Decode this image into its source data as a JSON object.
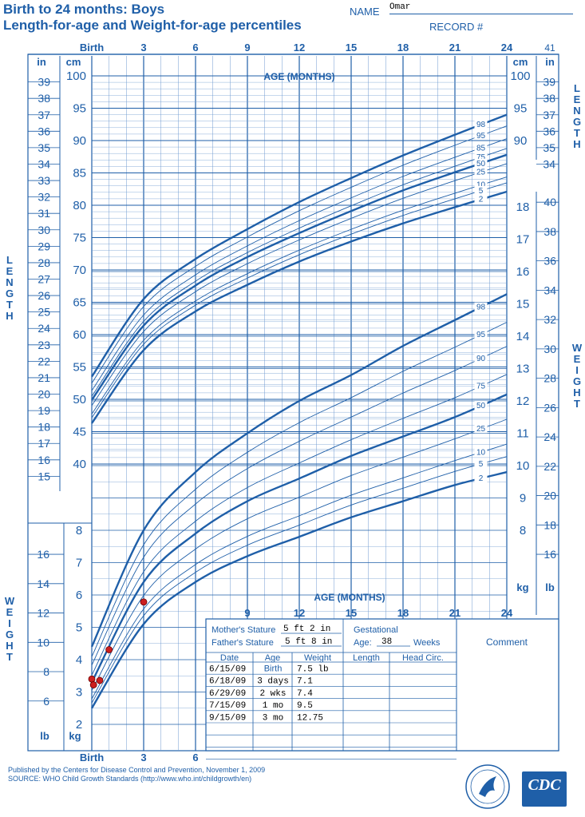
{
  "header": {
    "title_line1": "Birth to 24 months: Boys",
    "title_line2": "Length-for-age and Weight-for-age percentiles",
    "name_label": "NAME",
    "name_value": "Omar",
    "record_label": "RECORD #"
  },
  "footer": {
    "published": "Published by the Centers for Disease Control and Prevention, November 1, 2009",
    "source": "SOURCE:  WHO Child Growth Standards (http://www.who.int/childgrowth/en)",
    "cdc_logo_text": "CDC"
  },
  "chart_data": {
    "type": "line",
    "age_axis": {
      "label": "AGE (MONTHS)",
      "ticks": [
        "Birth",
        "3",
        "6",
        "9",
        "12",
        "15",
        "18",
        "21",
        "24"
      ],
      "range_months": [
        0,
        24
      ]
    },
    "length_axis": {
      "label": "LENGTH",
      "cm_label": "cm",
      "in_label": "in",
      "cm_ticks": [
        100,
        95,
        90,
        85,
        80,
        75,
        70,
        65,
        60,
        55,
        50,
        45,
        40
      ],
      "in_ticks_left": [
        39,
        38,
        37,
        36,
        35,
        34,
        33,
        32,
        31,
        30,
        29,
        28,
        27,
        26,
        25,
        24,
        23,
        22,
        21,
        20,
        19,
        18,
        17,
        16,
        15
      ],
      "in_ticks_right": [
        41,
        39,
        38,
        37,
        36,
        35,
        34
      ],
      "cm_ticks_right": [
        100,
        95,
        90
      ]
    },
    "weight_axis": {
      "label": "WEIGHT",
      "kg_label": "kg",
      "lb_label": "lb",
      "kg_ticks_left": [
        8,
        7,
        6,
        5,
        4,
        3,
        2
      ],
      "lb_ticks_left": [
        16,
        14,
        12,
        10,
        8,
        6
      ],
      "kg_ticks_right": [
        18,
        17,
        16,
        15,
        14,
        13,
        12,
        11,
        10,
        9,
        8
      ],
      "lb_ticks_right": [
        40,
        38,
        36,
        34,
        32,
        30,
        28,
        26,
        24,
        22,
        20,
        18,
        16
      ]
    },
    "length_percentiles": [
      "98",
      "95",
      "85",
      "75",
      "50",
      "25",
      "10",
      "5",
      "2"
    ],
    "weight_percentiles": [
      "98",
      "95",
      "90",
      "75",
      "50",
      "25",
      "10",
      "5",
      "2"
    ],
    "length_curves_cm": {
      "ages": [
        0,
        3,
        6,
        9,
        12,
        15,
        18,
        21,
        24
      ],
      "p98": [
        53.5,
        65.5,
        71.7,
        76.3,
        80.5,
        84.2,
        87.7,
        90.9,
        94.0
      ],
      "p50": [
        49.9,
        61.4,
        67.6,
        72.0,
        75.7,
        79.1,
        82.3,
        85.1,
        87.8
      ],
      "p2": [
        46.3,
        57.6,
        63.6,
        67.7,
        71.3,
        74.4,
        77.2,
        79.7,
        82.1
      ]
    },
    "weight_curves_kg": {
      "ages": [
        0,
        3,
        6,
        9,
        12,
        15,
        18,
        21,
        24
      ],
      "p98": [
        4.4,
        8.0,
        9.8,
        11.0,
        12.0,
        12.8,
        13.7,
        14.5,
        15.3
      ],
      "p50": [
        3.3,
        6.4,
        7.9,
        8.9,
        9.6,
        10.3,
        10.9,
        11.5,
        12.2
      ],
      "p2": [
        2.5,
        5.1,
        6.4,
        7.2,
        7.8,
        8.4,
        8.9,
        9.4,
        9.8
      ]
    },
    "measurements": [
      {
        "date": "6/15/09",
        "age": "Birth",
        "weight": "7.5 lb",
        "age_months": 0.0,
        "weight_lb": 7.5
      },
      {
        "date": "6/18/09",
        "age": "3 days",
        "weight": "7.1",
        "age_months": 0.1,
        "weight_lb": 7.1
      },
      {
        "date": "6/29/09",
        "age": "2 wks",
        "weight": "7.4",
        "age_months": 0.46,
        "weight_lb": 7.4
      },
      {
        "date": "7/15/09",
        "age": "1 mo",
        "weight": "9.5",
        "age_months": 1.0,
        "weight_lb": 9.5
      },
      {
        "date": "9/15/09",
        "age": "3 mo",
        "weight": "12.75",
        "age_months": 3.0,
        "weight_lb": 12.75
      }
    ],
    "info_box": {
      "mothers_stature_label": "Mother's Stature",
      "mothers_stature": "5 ft 2 in",
      "fathers_stature_label": "Father's Stature",
      "fathers_stature": "5 ft 8 in",
      "gestational_label": "Gestational",
      "age_label": "Age:",
      "gestational_age": "38",
      "weeks_label": "Weeks",
      "comment_label": "Comment",
      "columns": [
        "Date",
        "Age",
        "Weight",
        "Length",
        "Head Circ."
      ]
    },
    "colors": {
      "line": "#1f5fa8",
      "grid": "#6f9bd1",
      "point": "#cc1f1f"
    }
  }
}
